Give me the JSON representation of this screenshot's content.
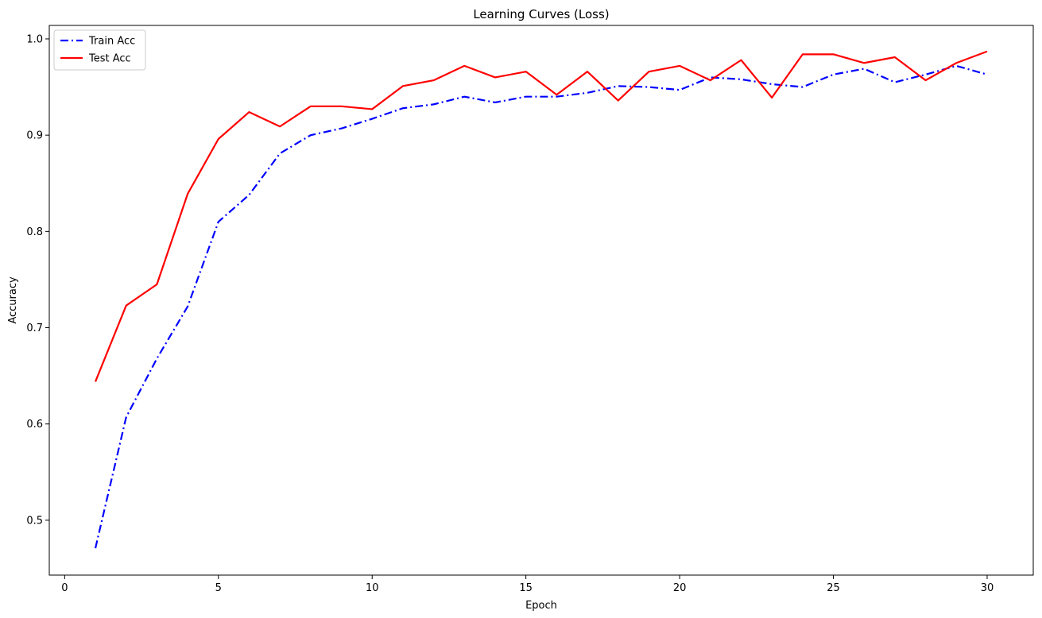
{
  "chart_data": {
    "type": "line",
    "title": "Learning Curves (Loss)",
    "xlabel": "Epoch",
    "ylabel": "Accuracy",
    "xlim": [
      -0.5,
      31.5
    ],
    "ylim": [
      0.443,
      1.014
    ],
    "xticks": [
      0,
      5,
      10,
      15,
      20,
      25,
      30
    ],
    "yticks": [
      0.5,
      0.6,
      0.7,
      0.8,
      0.9,
      1.0
    ],
    "ytick_labels": [
      "0.5",
      "0.6",
      "0.7",
      "0.8",
      "0.9",
      "1.0"
    ],
    "grid": false,
    "legend_position": "top-left",
    "x": [
      1,
      2,
      3,
      4,
      5,
      6,
      7,
      8,
      9,
      10,
      11,
      12,
      13,
      14,
      15,
      16,
      17,
      18,
      19,
      20,
      21,
      22,
      23,
      24,
      25,
      26,
      27,
      28,
      29,
      30
    ],
    "series": [
      {
        "name": "Train Acc",
        "color": "#0000ff",
        "style": "dashdot",
        "values": [
          0.471,
          0.607,
          0.668,
          0.722,
          0.81,
          0.838,
          0.881,
          0.9,
          0.907,
          0.917,
          0.928,
          0.932,
          0.94,
          0.934,
          0.94,
          0.94,
          0.944,
          0.951,
          0.95,
          0.947,
          0.96,
          0.958,
          0.953,
          0.95,
          0.963,
          0.969,
          0.955,
          0.963,
          0.972,
          0.963
        ]
      },
      {
        "name": "Test Acc",
        "color": "#ff0000",
        "style": "solid",
        "values": [
          0.644,
          0.723,
          0.745,
          0.839,
          0.896,
          0.924,
          0.909,
          0.93,
          0.93,
          0.927,
          0.951,
          0.957,
          0.972,
          0.96,
          0.966,
          0.942,
          0.966,
          0.936,
          0.966,
          0.972,
          0.957,
          0.978,
          0.939,
          0.984,
          0.984,
          0.975,
          0.981,
          0.957,
          0.975,
          0.987
        ]
      }
    ]
  }
}
